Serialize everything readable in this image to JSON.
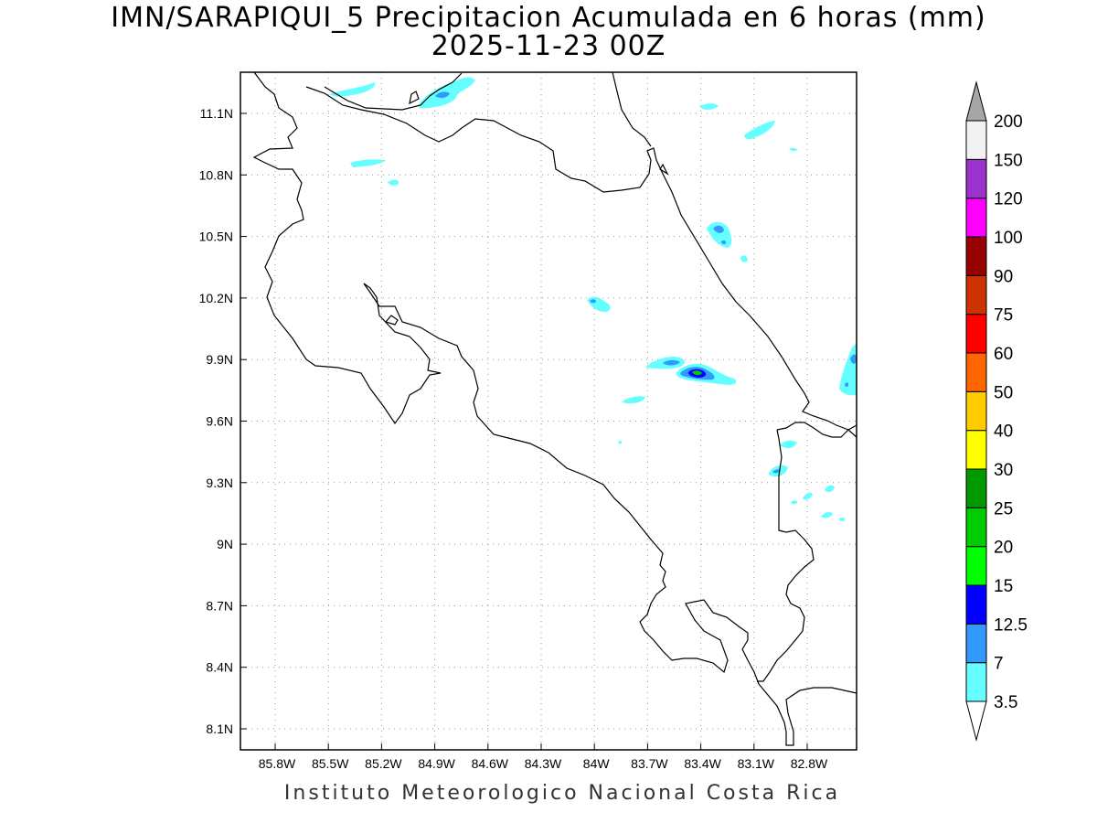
{
  "title_line1": "IMN/SARAPIQUI_5 Precipitacion Acumulada en 6 horas (mm)",
  "title_line2": "2025-11-23 00Z",
  "footer": "Instituto Meteorologico Nacional Costa Rica",
  "map": {
    "lat_ticks": [
      "11.1N",
      "10.8N",
      "10.5N",
      "10.2N",
      "9.9N",
      "9.6N",
      "9.3N",
      "9N",
      "8.7N",
      "8.4N",
      "8.1N"
    ],
    "lon_ticks": [
      "85.8W",
      "85.5W",
      "85.2W",
      "84.9W",
      "84.6W",
      "84.3W",
      "84W",
      "83.7W",
      "83.4W",
      "83.1W",
      "82.8W"
    ],
    "grid": "dotted"
  },
  "colorbar": {
    "levels": [
      "3.5",
      "7",
      "12.5",
      "15",
      "20",
      "25",
      "30",
      "40",
      "50",
      "60",
      "75",
      "90",
      "100",
      "120",
      "150",
      "200"
    ],
    "colors": [
      "#66ffff",
      "#3399ff",
      "#0000ff",
      "#00ff00",
      "#00cc00",
      "#009900",
      "#ffff00",
      "#ffcc00",
      "#ff6600",
      "#ff0000",
      "#cc3300",
      "#990000",
      "#ff00ff",
      "#9933cc",
      "#f2f2f2",
      "#a6a6a6"
    ]
  },
  "precip_colors": {
    "light": "#66ffff",
    "medium": "#3399ff",
    "heavy": "#0000ff",
    "peak": "#00cc00"
  }
}
